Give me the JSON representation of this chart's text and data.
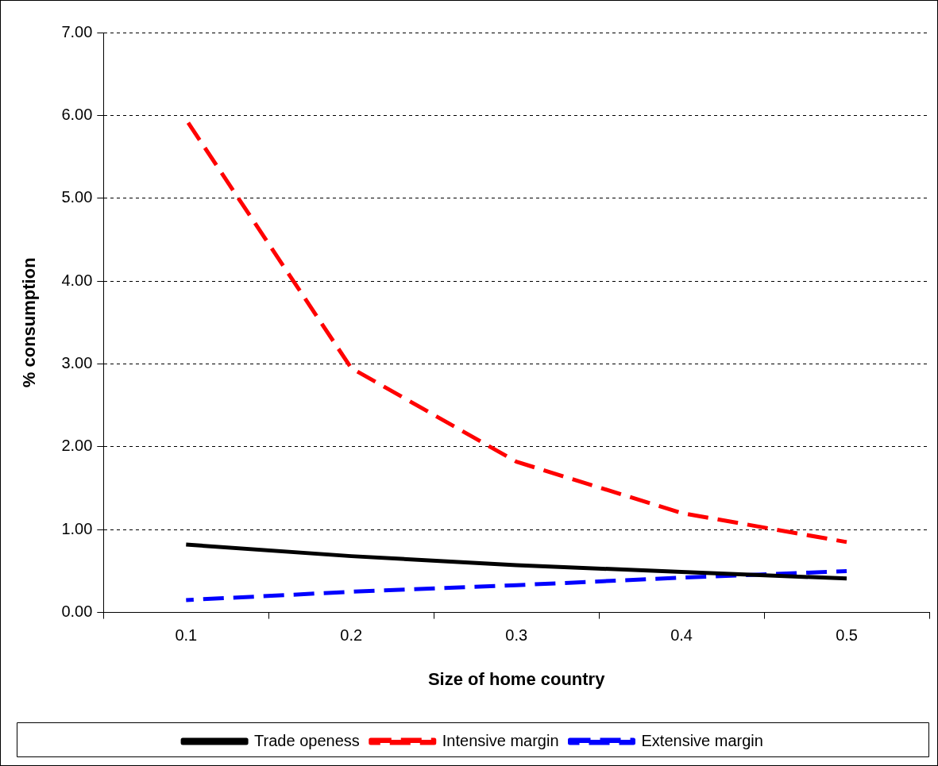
{
  "chart_data": {
    "type": "line",
    "xlabel": "Size of home country",
    "ylabel": "% consumption",
    "categories": [
      "0.1",
      "0.2",
      "0.3",
      "0.4",
      "0.5"
    ],
    "series": [
      {
        "name": "Trade openess",
        "color": "#000000",
        "line_style": "solid",
        "values": [
          0.82,
          0.68,
          0.57,
          0.49,
          0.41
        ]
      },
      {
        "name": "Intensive margin",
        "color": "#ff0000",
        "line_style": "dashed",
        "values": [
          5.95,
          2.95,
          1.82,
          1.2,
          0.85
        ]
      },
      {
        "name": "Extensive margin",
        "color": "#0000ff",
        "line_style": "dashed",
        "values": [
          0.15,
          0.25,
          0.33,
          0.42,
          0.5
        ]
      }
    ],
    "ylim": [
      0,
      7
    ],
    "yticks": [
      {
        "value": 0,
        "label": "0.00"
      },
      {
        "value": 1,
        "label": "1.00"
      },
      {
        "value": 2,
        "label": "2.00"
      },
      {
        "value": 3,
        "label": "3.00"
      },
      {
        "value": 4,
        "label": "4.00"
      },
      {
        "value": 5,
        "label": "5.00"
      },
      {
        "value": 6,
        "label": "6.00"
      },
      {
        "value": 7,
        "label": "7.00"
      }
    ],
    "grid": "y",
    "legend": "bottom",
    "marker": "none"
  }
}
